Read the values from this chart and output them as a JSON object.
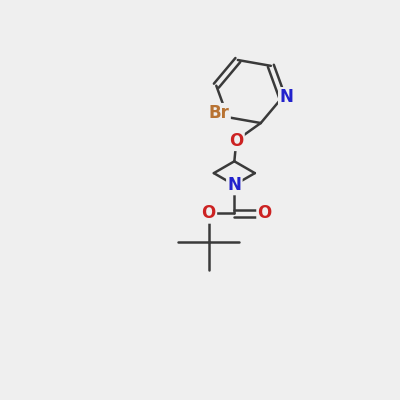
{
  "bg_color": "#efefef",
  "bond_color": "#3a3a3a",
  "bond_width": 1.8,
  "atom_colors": {
    "Br": "#b87333",
    "N": "#2222cc",
    "O": "#cc2222"
  },
  "font_size": 11,
  "fig_size": [
    4.0,
    4.0
  ],
  "dpi": 100
}
